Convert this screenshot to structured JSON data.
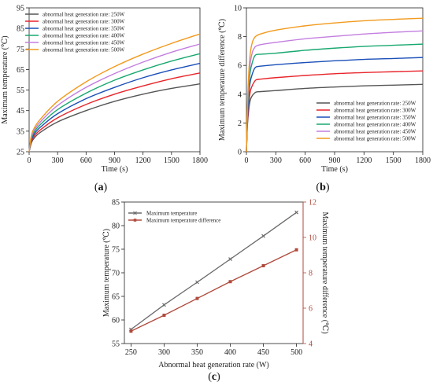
{
  "chart_data": [
    {
      "type": "line",
      "panel": "(a)",
      "panel_letter": "a",
      "xlabel": "Time (s)",
      "ylabel": "Maximum temperature (℃)",
      "xlim": [
        0,
        1800
      ],
      "ylim": [
        25,
        95
      ],
      "xticks": [
        0,
        300,
        600,
        900,
        1200,
        1500,
        1800
      ],
      "yticks": [
        25,
        35,
        45,
        55,
        65,
        75,
        85,
        95
      ],
      "legend_position": "top-left",
      "x": [
        0,
        25,
        60,
        120,
        300,
        600,
        900,
        1200,
        1500,
        1800
      ],
      "series": [
        {
          "name": "abnormal heat generation rate: 250W",
          "color": "#555555",
          "values": [
            25,
            29.5,
            32,
            34.5,
            39.5,
            45,
            49.5,
            53,
            55.8,
            58
          ]
        },
        {
          "name": "abnormal heat generation rate: 300W",
          "color": "#e8242a",
          "values": [
            25,
            30.3,
            33,
            35.7,
            41.5,
            48,
            53,
            57,
            60.5,
            63.3
          ]
        },
        {
          "name": "abnormal heat generation rate: 350W",
          "color": "#1a4fb8",
          "values": [
            25,
            31,
            34,
            37,
            43.5,
            50.8,
            56.3,
            61,
            64.8,
            68
          ]
        },
        {
          "name": "abnormal heat generation rate: 400W",
          "color": "#18a870",
          "values": [
            25,
            31.8,
            35,
            38.3,
            45.5,
            53.5,
            59.8,
            64.8,
            69.1,
            72.7
          ]
        },
        {
          "name": "abnormal heat generation rate: 450W",
          "color": "#c37ee0",
          "values": [
            25,
            32.5,
            36,
            39.6,
            47.5,
            56.3,
            63,
            68.6,
            73.4,
            77.4
          ]
        },
        {
          "name": "abnormal heat generation rate: 500W",
          "color": "#f29a1c",
          "values": [
            25,
            33.3,
            37,
            40.9,
            49.5,
            59,
            66.4,
            72.5,
            77.7,
            82.3
          ]
        }
      ]
    },
    {
      "type": "line",
      "panel": "(b)",
      "panel_letter": "b",
      "xlabel": "Time (s)",
      "ylabel": "Maximum temperature difference (℃)",
      "xlim": [
        0,
        1800
      ],
      "ylim": [
        0,
        10
      ],
      "xticks": [
        0,
        300,
        600,
        900,
        1200,
        1500,
        1800
      ],
      "yticks": [
        0,
        2,
        4,
        6,
        8,
        10
      ],
      "legend_position": "bottom-right",
      "x": [
        0,
        10,
        25,
        40,
        60,
        80,
        100,
        150,
        300,
        600,
        900,
        1200,
        1500,
        1800
      ],
      "series": [
        {
          "name": "abnormal heat generation rate: 250W",
          "color": "#555555",
          "values": [
            0,
            1.8,
            3.0,
            3.6,
            3.9,
            4.05,
            4.15,
            4.18,
            4.25,
            4.4,
            4.5,
            4.58,
            4.63,
            4.68
          ]
        },
        {
          "name": "abnormal heat generation rate: 300W",
          "color": "#e8242a",
          "values": [
            0,
            2.0,
            3.4,
            4.2,
            4.6,
            4.85,
            5.0,
            5.05,
            5.15,
            5.3,
            5.42,
            5.5,
            5.56,
            5.62
          ]
        },
        {
          "name": "abnormal heat generation rate: 350W",
          "color": "#1a4fb8",
          "values": [
            0,
            2.3,
            4.0,
            4.9,
            5.4,
            5.75,
            5.9,
            5.95,
            6.05,
            6.2,
            6.32,
            6.42,
            6.48,
            6.55
          ]
        },
        {
          "name": "abnormal heat generation rate: 400W",
          "color": "#18a870",
          "values": [
            0,
            2.6,
            4.5,
            5.6,
            6.2,
            6.6,
            6.75,
            6.78,
            6.85,
            7.05,
            7.2,
            7.32,
            7.4,
            7.48
          ]
        },
        {
          "name": "abnormal heat generation rate: 450W",
          "color": "#c37ee0",
          "values": [
            0,
            2.9,
            5.0,
            6.2,
            6.9,
            7.2,
            7.35,
            7.45,
            7.6,
            7.85,
            8.02,
            8.18,
            8.3,
            8.4
          ]
        },
        {
          "name": "abnormal heat generation rate: 500W",
          "color": "#f29a1c",
          "values": [
            0,
            3.2,
            5.6,
            6.9,
            7.6,
            7.9,
            8.05,
            8.2,
            8.45,
            8.75,
            8.95,
            9.1,
            9.2,
            9.28
          ]
        }
      ]
    },
    {
      "type": "line",
      "panel": "(c)",
      "panel_letter": "c",
      "xlabel": "Abnormal heat generation rate (W)",
      "ylabel": "Maximum temperature (℃)",
      "y2label": "Maximum temperature difference (℃)",
      "categories": [
        250,
        300,
        350,
        400,
        450,
        500
      ],
      "xticks": [
        250,
        300,
        350,
        400,
        450,
        500
      ],
      "xlim": [
        240,
        510
      ],
      "ylim": [
        55,
        85
      ],
      "yticks": [
        55,
        60,
        65,
        70,
        75,
        80,
        85
      ],
      "y2lim": [
        4,
        12
      ],
      "y2ticks": [
        4,
        6,
        8,
        10,
        12
      ],
      "legend_position": "top-left",
      "series": [
        {
          "name": "Maximum temperature",
          "color": "#6a6a6a",
          "marker": "x",
          "axis": "left",
          "values": [
            58.0,
            63.2,
            68.0,
            72.9,
            77.8,
            82.8
          ]
        },
        {
          "name": "Maximum temperature difference",
          "color": "#b04a3c",
          "marker": "square",
          "axis": "right",
          "values": [
            4.7,
            5.6,
            6.55,
            7.5,
            8.4,
            9.3
          ]
        }
      ]
    }
  ]
}
